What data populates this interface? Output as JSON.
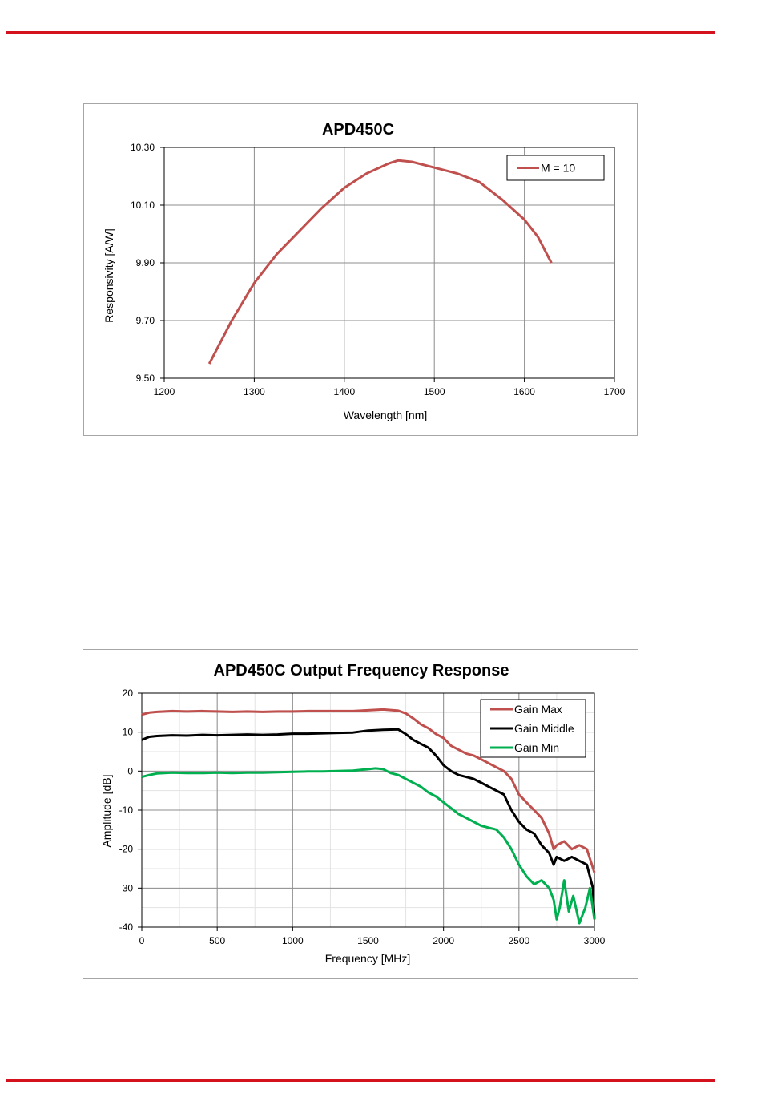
{
  "chart_data": [
    {
      "type": "line",
      "title": "APD450C",
      "xlabel": "Wavelength [nm]",
      "ylabel": "Responsivity [A/W]",
      "xlim": [
        1200,
        1700
      ],
      "ylim": [
        9.5,
        10.3
      ],
      "xticks": [
        "1200",
        "1300",
        "1400",
        "1500",
        "1600",
        "1700"
      ],
      "yticks": [
        "10.30",
        "10.10",
        "9.90",
        "9.70",
        "9.50"
      ],
      "grid": true,
      "legend": "top-right",
      "series": [
        {
          "name": "M = 10",
          "color": "#c0504d",
          "x": [
            1250,
            1275,
            1300,
            1325,
            1350,
            1375,
            1400,
            1425,
            1450,
            1460,
            1475,
            1500,
            1525,
            1550,
            1575,
            1600,
            1615,
            1630
          ],
          "y": [
            9.55,
            9.7,
            9.83,
            9.93,
            10.01,
            10.09,
            10.16,
            10.21,
            10.245,
            10.255,
            10.25,
            10.23,
            10.21,
            10.18,
            10.12,
            10.05,
            9.99,
            9.9
          ]
        }
      ]
    },
    {
      "type": "line",
      "title": "APD450C Output Frequency Response",
      "xlabel": "Frequency [MHz]",
      "ylabel": "Amplitude [dB]",
      "xlim": [
        0,
        3000
      ],
      "ylim": [
        -40,
        20
      ],
      "xticks": [
        "0",
        "500",
        "1000",
        "1500",
        "2000",
        "2500",
        "3000"
      ],
      "yticks": [
        "20",
        "10",
        "0",
        "-10",
        "-20",
        "-30",
        "-40"
      ],
      "grid": true,
      "legend": "top-right",
      "series": [
        {
          "name": "Gain Max",
          "color": "#c0504d",
          "x": [
            0,
            50,
            100,
            200,
            300,
            400,
            500,
            600,
            700,
            800,
            900,
            1000,
            1100,
            1200,
            1300,
            1400,
            1500,
            1600,
            1700,
            1750,
            1800,
            1850,
            1900,
            1950,
            2000,
            2050,
            2100,
            2150,
            2200,
            2250,
            2300,
            2350,
            2400,
            2450,
            2500,
            2550,
            2600,
            2650,
            2700,
            2730,
            2750,
            2800,
            2850,
            2900,
            2950,
            3000
          ],
          "y": [
            14.5,
            15,
            15.2,
            15.4,
            15.3,
            15.4,
            15.3,
            15.2,
            15.3,
            15.2,
            15.3,
            15.3,
            15.4,
            15.4,
            15.4,
            15.4,
            15.6,
            15.8,
            15.5,
            14.8,
            13.5,
            12,
            11,
            9.5,
            8.5,
            6.5,
            5.5,
            4.5,
            4,
            3,
            2,
            1,
            0,
            -2,
            -6,
            -8,
            -10,
            -12,
            -16,
            -20,
            -19,
            -18,
            -20,
            -19,
            -20,
            -26
          ]
        },
        {
          "name": "Gain Middle",
          "color": "#000000",
          "x": [
            0,
            50,
            100,
            200,
            300,
            400,
            500,
            600,
            700,
            800,
            900,
            1000,
            1100,
            1200,
            1300,
            1400,
            1500,
            1600,
            1700,
            1750,
            1800,
            1850,
            1900,
            1950,
            2000,
            2050,
            2100,
            2150,
            2200,
            2250,
            2300,
            2350,
            2400,
            2450,
            2500,
            2550,
            2600,
            2650,
            2700,
            2730,
            2750,
            2800,
            2850,
            2900,
            2950,
            2990,
            3000
          ],
          "y": [
            8,
            8.8,
            9.0,
            9.2,
            9.1,
            9.3,
            9.2,
            9.3,
            9.4,
            9.3,
            9.4,
            9.6,
            9.6,
            9.7,
            9.8,
            9.9,
            10.4,
            10.6,
            10.7,
            9.5,
            8,
            7,
            6,
            4,
            1.5,
            0,
            -1,
            -1.5,
            -2,
            -3,
            -4,
            -5,
            -6,
            -10,
            -13,
            -15,
            -16,
            -19,
            -21,
            -24,
            -22,
            -23,
            -22,
            -23,
            -24,
            -30,
            -38
          ]
        },
        {
          "name": "Gain Min",
          "color": "#00b050",
          "x": [
            0,
            50,
            100,
            200,
            300,
            400,
            500,
            600,
            700,
            800,
            900,
            1000,
            1100,
            1200,
            1300,
            1400,
            1500,
            1550,
            1600,
            1650,
            1700,
            1750,
            1800,
            1850,
            1900,
            1950,
            2000,
            2050,
            2100,
            2150,
            2200,
            2250,
            2300,
            2350,
            2400,
            2450,
            2500,
            2550,
            2600,
            2650,
            2700,
            2730,
            2750,
            2770,
            2800,
            2830,
            2860,
            2900,
            2940,
            2970,
            3000
          ],
          "y": [
            -1.5,
            -1,
            -0.6,
            -0.4,
            -0.5,
            -0.5,
            -0.4,
            -0.5,
            -0.4,
            -0.4,
            -0.3,
            -0.2,
            -0.1,
            -0.1,
            0,
            0.1,
            0.5,
            0.7,
            0.5,
            -0.5,
            -1,
            -2,
            -3,
            -4,
            -5.5,
            -6.5,
            -8,
            -9.5,
            -11,
            -12,
            -13,
            -14,
            -14.5,
            -15,
            -17,
            -20,
            -24,
            -27,
            -29,
            -28,
            -30,
            -33,
            -38,
            -35,
            -28,
            -36,
            -32,
            -39,
            -35,
            -30,
            -38
          ]
        }
      ]
    }
  ]
}
